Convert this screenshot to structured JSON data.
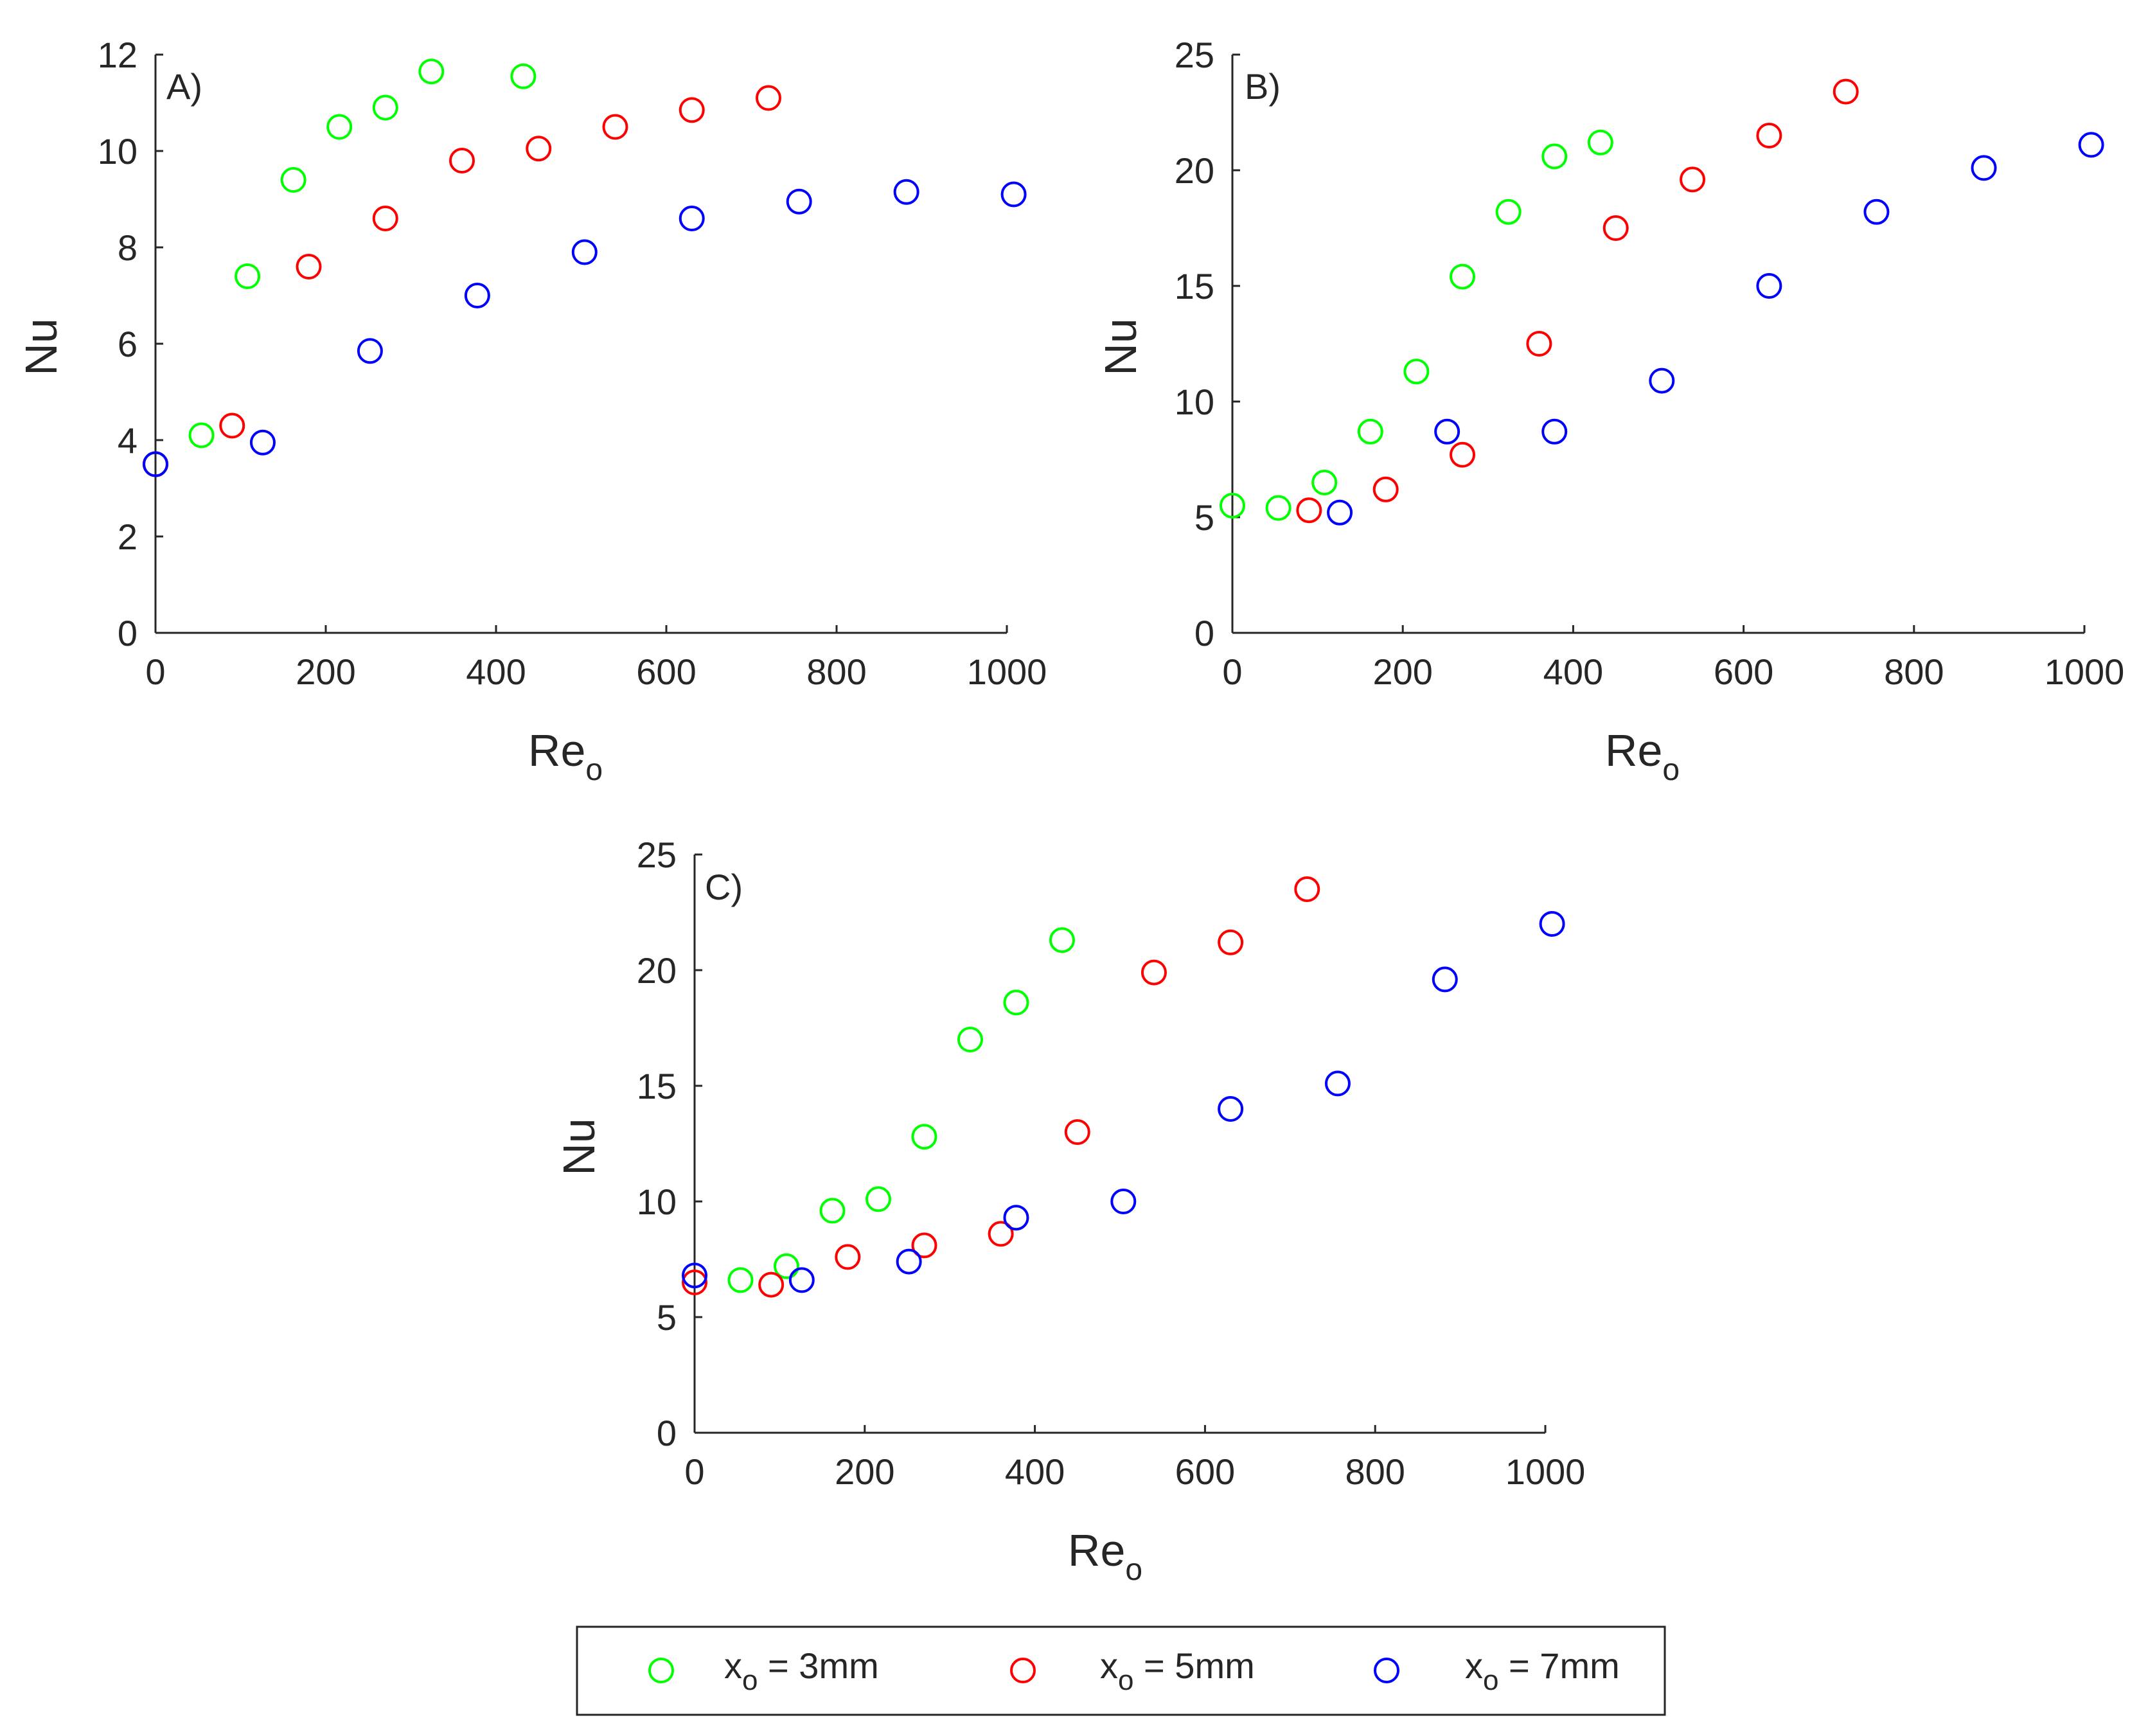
{
  "chart_data": [
    {
      "type": "scatter",
      "panel_label": "A)",
      "xlabel": "Re",
      "xlabel_sub": "o",
      "ylabel": "Nu",
      "xlim": [
        0,
        1000
      ],
      "ylim": [
        0,
        12
      ],
      "xticks": [
        0,
        200,
        400,
        600,
        800,
        1000
      ],
      "yticks": [
        0,
        2,
        4,
        6,
        8,
        10,
        12
      ],
      "series": [
        {
          "name": "x_o = 3mm",
          "color": "#00ff00",
          "x": [
            0,
            54,
            108,
            162,
            216,
            270,
            324,
            432
          ],
          "y": [
            3.5,
            4.1,
            7.4,
            9.4,
            10.5,
            10.9,
            11.65,
            11.55
          ]
        },
        {
          "name": "x_o = 5mm",
          "color": "#ff0000",
          "x": [
            0,
            90,
            180,
            270,
            360,
            450,
            540,
            630,
            720
          ],
          "y": [
            3.5,
            4.3,
            7.6,
            8.6,
            9.8,
            10.05,
            10.5,
            10.85,
            11.1
          ]
        },
        {
          "name": "x_o = 7mm",
          "color": "#0000ff",
          "x": [
            0,
            126,
            252,
            378,
            504,
            630,
            756,
            882,
            1008
          ],
          "y": [
            3.5,
            3.95,
            5.85,
            7.0,
            7.9,
            8.6,
            8.95,
            9.15,
            9.1
          ]
        }
      ]
    },
    {
      "type": "scatter",
      "panel_label": "B)",
      "xlabel": "Re",
      "xlabel_sub": "o",
      "ylabel": "Nu",
      "xlim": [
        0,
        1000
      ],
      "ylim": [
        0,
        25
      ],
      "xticks": [
        0,
        200,
        400,
        600,
        800,
        1000
      ],
      "yticks": [
        0,
        5,
        10,
        15,
        20,
        25
      ],
      "series": [
        {
          "name": "x_o = 3mm",
          "color": "#00ff00",
          "x": [
            0,
            54,
            108,
            162,
            216,
            270,
            324,
            378,
            432
          ],
          "y": [
            5.5,
            5.4,
            6.5,
            8.7,
            11.3,
            15.4,
            18.2,
            20.6,
            21.2
          ]
        },
        {
          "name": "x_o = 5mm",
          "color": "#ff0000",
          "x": [
            90,
            180,
            270,
            360,
            450,
            540,
            630,
            720
          ],
          "y": [
            5.3,
            6.2,
            7.7,
            12.5,
            17.5,
            19.6,
            21.5,
            23.4
          ]
        },
        {
          "name": "x_o = 7mm",
          "color": "#0000ff",
          "x": [
            126,
            252,
            378,
            504,
            630,
            756,
            882,
            1008
          ],
          "y": [
            5.2,
            8.7,
            8.7,
            10.9,
            15.0,
            18.2,
            20.1,
            21.1
          ]
        }
      ]
    },
    {
      "type": "scatter",
      "panel_label": "C)",
      "xlabel": "Re",
      "xlabel_sub": "o",
      "ylabel": "Nu",
      "xlim": [
        0,
        1000
      ],
      "ylim": [
        0,
        25
      ],
      "xticks": [
        0,
        200,
        400,
        600,
        800,
        1000
      ],
      "yticks": [
        0,
        5,
        10,
        15,
        20,
        25
      ],
      "series": [
        {
          "name": "x_o = 3mm",
          "color": "#00ff00",
          "x": [
            54,
            108,
            162,
            216,
            270,
            324,
            378,
            432
          ],
          "y": [
            6.6,
            7.2,
            9.6,
            10.1,
            12.8,
            17.0,
            18.6,
            21.3
          ]
        },
        {
          "name": "x_o = 5mm",
          "color": "#ff0000",
          "x": [
            0,
            90,
            180,
            270,
            360,
            450,
            540,
            630,
            720
          ],
          "y": [
            6.5,
            6.4,
            7.6,
            8.1,
            8.6,
            13.0,
            19.9,
            21.2,
            23.5
          ]
        },
        {
          "name": "x_o = 7mm",
          "color": "#0000ff",
          "x": [
            0,
            126,
            252,
            378,
            504,
            630,
            756,
            882,
            1008
          ],
          "y": [
            6.8,
            6.6,
            7.4,
            9.3,
            10.0,
            14.0,
            15.1,
            19.6,
            22.0
          ]
        }
      ]
    }
  ],
  "legend": {
    "placement": "bottom-center",
    "items": [
      {
        "prefix": "x",
        "sub": "o",
        "suffix": " = 3mm",
        "color": "#00ff00"
      },
      {
        "prefix": "x",
        "sub": "o",
        "suffix": " = 5mm",
        "color": "#ff0000"
      },
      {
        "prefix": "x",
        "sub": "o",
        "suffix": " = 7mm",
        "color": "#0000ff"
      }
    ]
  }
}
